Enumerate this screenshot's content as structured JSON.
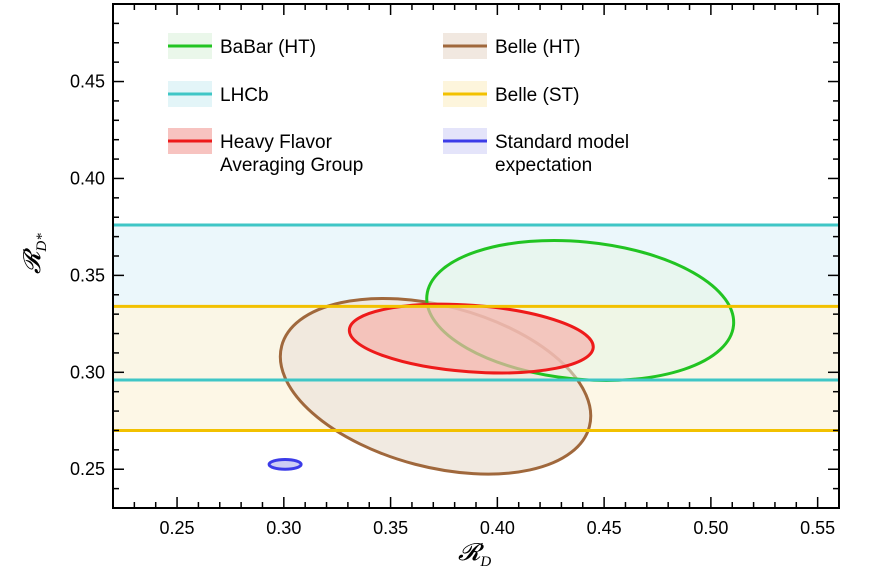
{
  "chart_data": {
    "type": "ellipse-contour",
    "xlabel": "𝓡",
    "xlabel_sub": "D",
    "ylabel": "𝓡",
    "ylabel_sub": "D*",
    "xlim": [
      0.22,
      0.56
    ],
    "ylim": [
      0.23,
      0.49
    ],
    "x_ticks": [
      "0.25",
      "0.30",
      "0.35",
      "0.40",
      "0.45",
      "0.50",
      "0.55"
    ],
    "y_ticks": [
      "0.25",
      "0.30",
      "0.35",
      "0.40",
      "0.45"
    ],
    "grid": false,
    "legend_placement": "top",
    "legend": [
      {
        "label": "BaBar (HT)",
        "color": "#22c422",
        "fill": "#eaf7ea"
      },
      {
        "label": "Belle (HT)",
        "color": "#a0683c",
        "fill": "#f1e8e0"
      },
      {
        "label": "LHCb",
        "color": "#3fc6c6",
        "fill": "#e3f5f8"
      },
      {
        "label": "Belle (ST)",
        "color": "#f2c100",
        "fill": "#fdf5dc"
      },
      {
        "label": "Heavy Flavor\nAveraging Group",
        "color": "#ee1a1a",
        "fill": "#f7c3c0"
      },
      {
        "label": "Standard model\nexpectation",
        "color": "#3b3be8",
        "fill": "#e4e4fa"
      }
    ],
    "bands": [
      {
        "name": "LHCb",
        "y_range": [
          0.296,
          0.376
        ],
        "color": "#3fc6c6",
        "fill": "#e8f6fa"
      },
      {
        "name": "Belle (ST)",
        "y_range": [
          0.27,
          0.334
        ],
        "color": "#f2c100",
        "fill": "#fdf6e2"
      }
    ],
    "ellipses": [
      {
        "name": "Belle (HT)",
        "vertices": [
          [
            0.299,
            0.3136
          ],
          [
            0.4431,
            0.272
          ]
        ],
        "co_vertices": [
          [
            0.3774,
            0.3338
          ],
          [
            0.3647,
            0.2518
          ]
        ],
        "color": "#a0683c",
        "fill": "#efe6dc",
        "opacity": 0.85
      },
      {
        "name": "BaBar (HT)",
        "vertices": [
          [
            0.367,
            0.3396
          ],
          [
            0.5106,
            0.3242
          ]
        ],
        "co_vertices": [
          [
            0.4221,
            0.3622
          ],
          [
            0.4555,
            0.3016
          ]
        ],
        "color": "#22c422",
        "fill": "#e6f5e6",
        "opacity": 0.55
      },
      {
        "name": "Heavy Flavor Averaging Group",
        "vertices": [
          [
            0.3307,
            0.322
          ],
          [
            0.4449,
            0.3128
          ]
        ],
        "co_vertices": [
          [
            0.389,
            0.3345
          ],
          [
            0.3866,
            0.3003
          ]
        ],
        "color": "#ee1a1a",
        "fill": "#f5b2ad",
        "opacity": 0.7
      },
      {
        "name": "Standard model expectation",
        "vertices": [
          [
            0.2931,
            0.2525
          ],
          [
            0.3081,
            0.2525
          ]
        ],
        "co_vertices": [
          [
            0.3006,
            0.255
          ],
          [
            0.3006,
            0.25
          ]
        ],
        "color": "#3b3be8",
        "fill": "#c8c8f3",
        "opacity": 0.9
      }
    ]
  }
}
